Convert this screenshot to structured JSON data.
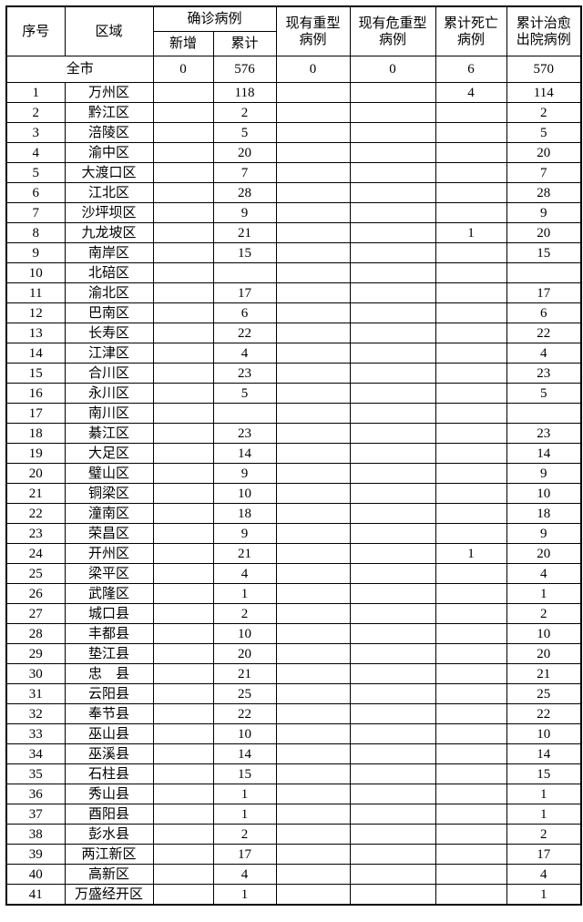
{
  "colors": {
    "background": "#ffffff",
    "border": "#000000",
    "text": "#000000"
  },
  "table": {
    "headers": {
      "serial": "序号",
      "region": "区域",
      "confirmed_group": "确诊病例",
      "new": "新增",
      "cumulative": "累计",
      "severe": "现有重型\n病例",
      "critical": "现有危重型\n病例",
      "deaths": "累计死亡\n病例",
      "cured": "累计治愈\n出院病例"
    },
    "total_row": {
      "region": "全市",
      "new": "0",
      "cumulative": "576",
      "severe": "0",
      "critical": "0",
      "deaths": "6",
      "cured": "570"
    },
    "rows": [
      [
        "1",
        "万州区",
        "",
        "118",
        "",
        "",
        "4",
        "114"
      ],
      [
        "2",
        "黔江区",
        "",
        "2",
        "",
        "",
        "",
        "2"
      ],
      [
        "3",
        "涪陵区",
        "",
        "5",
        "",
        "",
        "",
        "5"
      ],
      [
        "4",
        "渝中区",
        "",
        "20",
        "",
        "",
        "",
        "20"
      ],
      [
        "5",
        "大渡口区",
        "",
        "7",
        "",
        "",
        "",
        "7"
      ],
      [
        "6",
        "江北区",
        "",
        "28",
        "",
        "",
        "",
        "28"
      ],
      [
        "7",
        "沙坪坝区",
        "",
        "9",
        "",
        "",
        "",
        "9"
      ],
      [
        "8",
        "九龙坡区",
        "",
        "21",
        "",
        "",
        "1",
        "20"
      ],
      [
        "9",
        "南岸区",
        "",
        "15",
        "",
        "",
        "",
        "15"
      ],
      [
        "10",
        "北碚区",
        "",
        "",
        "",
        "",
        "",
        ""
      ],
      [
        "11",
        "渝北区",
        "",
        "17",
        "",
        "",
        "",
        "17"
      ],
      [
        "12",
        "巴南区",
        "",
        "6",
        "",
        "",
        "",
        "6"
      ],
      [
        "13",
        "长寿区",
        "",
        "22",
        "",
        "",
        "",
        "22"
      ],
      [
        "14",
        "江津区",
        "",
        "4",
        "",
        "",
        "",
        "4"
      ],
      [
        "15",
        "合川区",
        "",
        "23",
        "",
        "",
        "",
        "23"
      ],
      [
        "16",
        "永川区",
        "",
        "5",
        "",
        "",
        "",
        "5"
      ],
      [
        "17",
        "南川区",
        "",
        "",
        "",
        "",
        "",
        ""
      ],
      [
        "18",
        "綦江区",
        "",
        "23",
        "",
        "",
        "",
        "23"
      ],
      [
        "19",
        "大足区",
        "",
        "14",
        "",
        "",
        "",
        "14"
      ],
      [
        "20",
        "璧山区",
        "",
        "9",
        "",
        "",
        "",
        "9"
      ],
      [
        "21",
        "铜梁区",
        "",
        "10",
        "",
        "",
        "",
        "10"
      ],
      [
        "22",
        "潼南区",
        "",
        "18",
        "",
        "",
        "",
        "18"
      ],
      [
        "23",
        "荣昌区",
        "",
        "9",
        "",
        "",
        "",
        "9"
      ],
      [
        "24",
        "开州区",
        "",
        "21",
        "",
        "",
        "1",
        "20"
      ],
      [
        "25",
        "梁平区",
        "",
        "4",
        "",
        "",
        "",
        "4"
      ],
      [
        "26",
        "武隆区",
        "",
        "1",
        "",
        "",
        "",
        "1"
      ],
      [
        "27",
        "城口县",
        "",
        "2",
        "",
        "",
        "",
        "2"
      ],
      [
        "28",
        "丰都县",
        "",
        "10",
        "",
        "",
        "",
        "10"
      ],
      [
        "29",
        "垫江县",
        "",
        "20",
        "",
        "",
        "",
        "20"
      ],
      [
        "30",
        "忠　县",
        "",
        "21",
        "",
        "",
        "",
        "21"
      ],
      [
        "31",
        "云阳县",
        "",
        "25",
        "",
        "",
        "",
        "25"
      ],
      [
        "32",
        "奉节县",
        "",
        "22",
        "",
        "",
        "",
        "22"
      ],
      [
        "33",
        "巫山县",
        "",
        "10",
        "",
        "",
        "",
        "10"
      ],
      [
        "34",
        "巫溪县",
        "",
        "14",
        "",
        "",
        "",
        "14"
      ],
      [
        "35",
        "石柱县",
        "",
        "15",
        "",
        "",
        "",
        "15"
      ],
      [
        "36",
        "秀山县",
        "",
        "1",
        "",
        "",
        "",
        "1"
      ],
      [
        "37",
        "酉阳县",
        "",
        "1",
        "",
        "",
        "",
        "1"
      ],
      [
        "38",
        "彭水县",
        "",
        "2",
        "",
        "",
        "",
        "2"
      ],
      [
        "39",
        "两江新区",
        "",
        "17",
        "",
        "",
        "",
        "17"
      ],
      [
        "40",
        "高新区",
        "",
        "4",
        "",
        "",
        "",
        "4"
      ],
      [
        "41",
        "万盛经开区",
        "",
        "1",
        "",
        "",
        "",
        "1"
      ]
    ]
  }
}
